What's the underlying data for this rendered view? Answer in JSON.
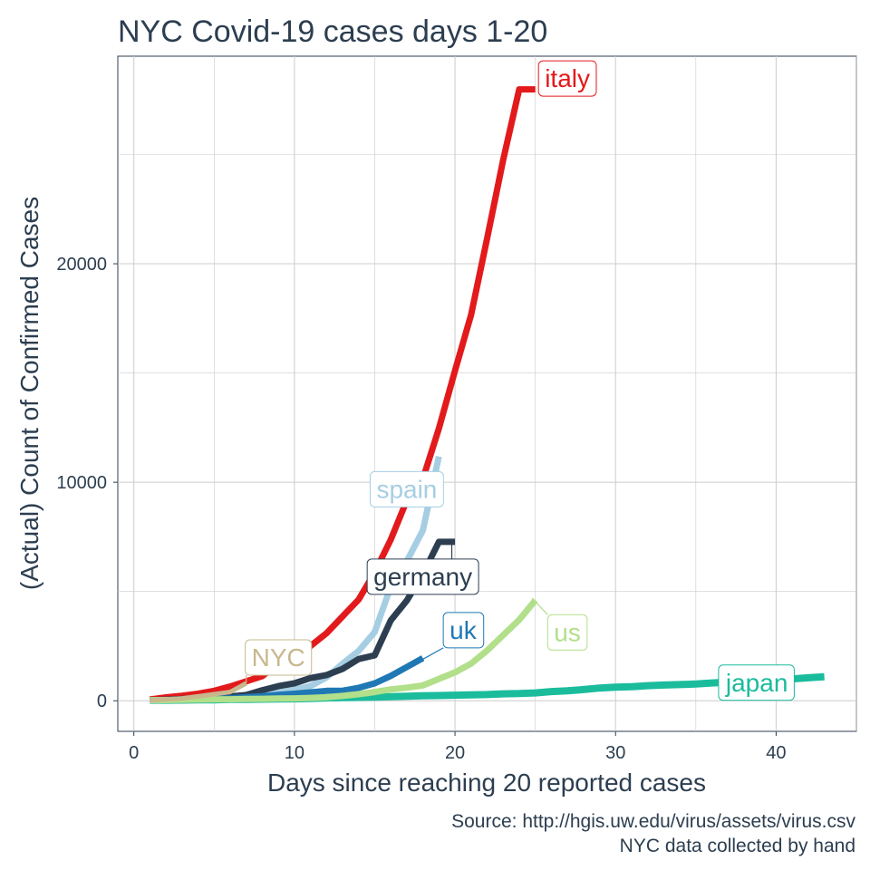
{
  "chart_data": {
    "type": "line",
    "title": "NYC Covid-19 cases days 1-20",
    "xlabel": "Days since reaching 20 reported cases",
    "ylabel": "(Actual) Count of Confirmed Cases",
    "xlim": [
      -1,
      45
    ],
    "ylim": [
      -1400,
      29500
    ],
    "xticks": [
      0,
      10,
      20,
      30,
      40
    ],
    "yticks": [
      0,
      10000,
      20000
    ],
    "grid": true,
    "legend": "none",
    "caption": [
      "Source: http://hgis.uw.edu/virus/assets/virus.csv",
      "NYC data collected by hand"
    ],
    "series": [
      {
        "name": "japan",
        "color": "#1abc9c",
        "width": 8,
        "label_pos": [
          38.8,
          850
        ],
        "label_anchor": [
          39.5,
          1250
        ],
        "x": [
          1,
          2,
          3,
          4,
          5,
          6,
          7,
          8,
          9,
          10,
          11,
          12,
          13,
          14,
          15,
          16,
          17,
          18,
          19,
          20,
          21,
          22,
          23,
          24,
          25,
          26,
          27,
          28,
          29,
          30,
          31,
          32,
          33,
          34,
          35,
          36,
          37,
          38,
          39,
          40,
          41,
          42,
          43
        ],
        "y": [
          25,
          28,
          33,
          41,
          45,
          59,
          66,
          73,
          84,
          89,
          105,
          132,
          144,
          156,
          164,
          186,
          210,
          230,
          239,
          254,
          268,
          284,
          317,
          331,
          360,
          420,
          455,
          514,
          581,
          619,
          639,
          689,
          719,
          739,
          765,
          815,
          851,
          866,
          870,
          950,
          1000,
          1050,
          1100
        ]
      },
      {
        "name": "italy",
        "color": "#e31a1c",
        "width": 7,
        "label_pos": [
          27,
          28500
        ],
        "label_anchor": [
          25.6,
          28000
        ],
        "x": [
          1,
          2,
          3,
          4,
          5,
          6,
          7,
          8,
          9,
          10,
          11,
          12,
          13,
          14,
          15,
          16,
          17,
          18,
          19,
          20,
          21,
          22,
          23,
          24,
          25
        ],
        "y": [
          62,
          155,
          229,
          322,
          453,
          655,
          888,
          1128,
          1694,
          2036,
          2502,
          3089,
          3858,
          4636,
          5883,
          7375,
          9172,
          10149,
          12462,
          15113,
          17660,
          21157,
          24747,
          27980,
          27980
        ]
      },
      {
        "name": "spain",
        "color": "#a6cee3",
        "width": 7,
        "label_pos": [
          17,
          9700
        ],
        "label_anchor": [
          17.6,
          9500
        ],
        "x": [
          1,
          2,
          3,
          4,
          5,
          6,
          7,
          8,
          9,
          10,
          11,
          12,
          13,
          14,
          15,
          16,
          17,
          18,
          19
        ],
        "y": [
          25,
          32,
          45,
          84,
          120,
          165,
          222,
          259,
          400,
          500,
          673,
          1073,
          1695,
          2277,
          3146,
          5232,
          6391,
          7798,
          11178
        ]
      },
      {
        "name": "germany",
        "color": "#2c3e50",
        "width": 7,
        "label_pos": [
          18,
          5700
        ],
        "label_anchor": [
          19.8,
          7200
        ],
        "x": [
          1,
          2,
          3,
          4,
          5,
          6,
          7,
          8,
          9,
          10,
          11,
          12,
          13,
          14,
          15,
          16,
          17,
          18,
          19,
          20
        ],
        "y": [
          26,
          48,
          79,
          130,
          159,
          196,
          262,
          482,
          670,
          799,
          1040,
          1176,
          1457,
          1908,
          2078,
          3675,
          4585,
          5795,
          7272,
          7272
        ]
      },
      {
        "name": "uk",
        "color": "#1f78b4",
        "width": 7,
        "label_pos": [
          20.5,
          3250
        ],
        "label_anchor": [
          18,
          1900
        ],
        "x": [
          1,
          2,
          3,
          4,
          5,
          6,
          7,
          8,
          9,
          10,
          11,
          12,
          13,
          14,
          15,
          16,
          17,
          18
        ],
        "y": [
          23,
          36,
          40,
          51,
          85,
          115,
          163,
          206,
          273,
          321,
          382,
          456,
          460,
          590,
          798,
          1140,
          1543,
          1950
        ]
      },
      {
        "name": "us",
        "color": "#b2df8a",
        "width": 7,
        "label_pos": [
          27,
          3150
        ],
        "label_anchor": [
          24.8,
          4700
        ],
        "x": [
          1,
          2,
          3,
          4,
          5,
          6,
          7,
          8,
          9,
          10,
          11,
          12,
          13,
          14,
          15,
          16,
          17,
          18,
          19,
          20,
          21,
          22,
          23,
          24,
          25
        ],
        "y": [
          25,
          30,
          40,
          50,
          60,
          70,
          80,
          90,
          100,
          110,
          130,
          160,
          220,
          300,
          400,
          520,
          600,
          700,
          1000,
          1300,
          1700,
          2300,
          3000,
          3700,
          4600
        ]
      },
      {
        "name": "NYC",
        "color": "#c7b88e",
        "width": 5,
        "label_pos": [
          9,
          2000
        ],
        "label_anchor": [
          7,
          800
        ],
        "x": [
          1,
          2,
          3,
          4,
          5,
          6,
          7
        ],
        "y": [
          20,
          60,
          110,
          200,
          300,
          400,
          800
        ]
      }
    ]
  }
}
